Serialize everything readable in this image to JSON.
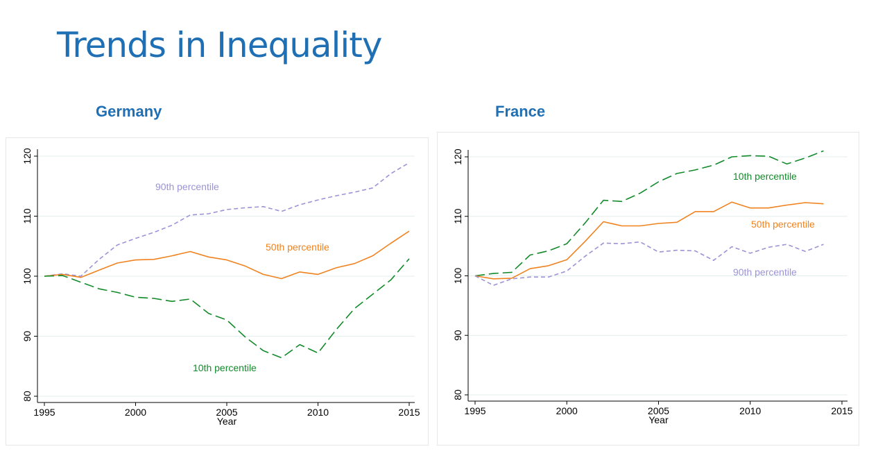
{
  "page": {
    "title": "Trends in Inequality"
  },
  "chart_data": [
    {
      "type": "line",
      "title": "Germany",
      "xlabel": "Year",
      "ylabel": "",
      "xlim": [
        1995,
        2015
      ],
      "ylim": [
        80,
        120
      ],
      "xticks": [
        1995,
        2000,
        2005,
        2010,
        2015
      ],
      "yticks": [
        80,
        90,
        100,
        110,
        120
      ],
      "grid": true,
      "series": [
        {
          "name": "90th percentile",
          "color": "#9b93d6",
          "dash": "dashed",
          "x": [
            1995,
            1996,
            1997,
            1998,
            1999,
            2000,
            2001,
            2002,
            2003,
            2004,
            2005,
            2006,
            2007,
            2008,
            2009,
            2010,
            2011,
            2012,
            2013,
            2014,
            2015
          ],
          "values": [
            100,
            100.4,
            100,
            102.8,
            105.2,
            106.3,
            107.3,
            108.5,
            110.2,
            110.4,
            111.1,
            111.4,
            111.6,
            110.8,
            111.9,
            112.7,
            113.4,
            114.0,
            114.7,
            117.1,
            118.9
          ]
        },
        {
          "name": "50th percentile",
          "color": "#f0821e",
          "dash": "solid",
          "x": [
            1995,
            1996,
            1997,
            1998,
            1999,
            2000,
            2001,
            2002,
            2003,
            2004,
            2005,
            2006,
            2007,
            2008,
            2009,
            2010,
            2011,
            2012,
            2013,
            2014,
            2015
          ],
          "values": [
            100,
            100.3,
            99.8,
            101.0,
            102.2,
            102.7,
            102.8,
            103.4,
            104.1,
            103.2,
            102.7,
            101.7,
            100.3,
            99.6,
            100.7,
            100.3,
            101.4,
            102.1,
            103.4,
            105.5,
            107.5
          ]
        },
        {
          "name": "10th percentile",
          "color": "#128a2a",
          "dash": "longdash",
          "x": [
            1995,
            1996,
            1997,
            1998,
            1999,
            2000,
            2001,
            2002,
            2003,
            2004,
            2005,
            2006,
            2007,
            2008,
            2009,
            2010,
            2011,
            2012,
            2013,
            2014,
            2015
          ],
          "values": [
            100,
            100.1,
            99.0,
            97.9,
            97.3,
            96.5,
            96.3,
            95.8,
            96.2,
            93.8,
            92.7,
            89.9,
            87.6,
            86.4,
            88.6,
            87.2,
            91.1,
            94.6,
            97.0,
            99.4,
            102.9
          ]
        }
      ]
    },
    {
      "type": "line",
      "title": "France",
      "xlabel": "Year",
      "ylabel": "",
      "xlim": [
        1995,
        2015
      ],
      "ylim": [
        80,
        120
      ],
      "xticks": [
        1995,
        2000,
        2005,
        2010,
        2015
      ],
      "yticks": [
        80,
        90,
        100,
        110,
        120
      ],
      "grid": true,
      "series": [
        {
          "name": "10th percentile",
          "color": "#128a2a",
          "dash": "longdash",
          "x": [
            1995,
            1996,
            1997,
            1998,
            1999,
            2000,
            2001,
            2002,
            2003,
            2004,
            2005,
            2006,
            2007,
            2008,
            2009,
            2010,
            2011,
            2012,
            2013,
            2014
          ],
          "values": [
            100,
            100.4,
            100.6,
            103.5,
            104.2,
            105.4,
            108.9,
            112.7,
            112.5,
            113.9,
            115.8,
            117.2,
            117.8,
            118.6,
            120.0,
            120.2,
            120.1,
            118.8,
            119.8,
            121.0
          ]
        },
        {
          "name": "50th percentile",
          "color": "#f0821e",
          "dash": "solid",
          "x": [
            1995,
            1996,
            1997,
            1998,
            1999,
            2000,
            2001,
            2002,
            2003,
            2004,
            2005,
            2006,
            2007,
            2008,
            2009,
            2010,
            2011,
            2012,
            2013,
            2014
          ],
          "values": [
            100,
            99.5,
            99.6,
            101.2,
            101.7,
            102.7,
            105.8,
            109.1,
            108.4,
            108.4,
            108.8,
            109.0,
            110.8,
            110.8,
            112.4,
            111.4,
            111.4,
            111.9,
            112.3,
            112.1
          ]
        },
        {
          "name": "90th percentile",
          "color": "#9b93d6",
          "dash": "dashed",
          "x": [
            1995,
            1996,
            1997,
            1998,
            1999,
            2000,
            2001,
            2002,
            2003,
            2004,
            2005,
            2006,
            2007,
            2008,
            2009,
            2010,
            2011,
            2012,
            2013,
            2014
          ],
          "values": [
            100,
            98.4,
            99.5,
            99.8,
            99.8,
            100.8,
            103.3,
            105.5,
            105.4,
            105.7,
            104.0,
            104.3,
            104.2,
            102.6,
            104.9,
            103.8,
            104.8,
            105.3,
            104.1,
            105.3
          ]
        }
      ]
    }
  ]
}
